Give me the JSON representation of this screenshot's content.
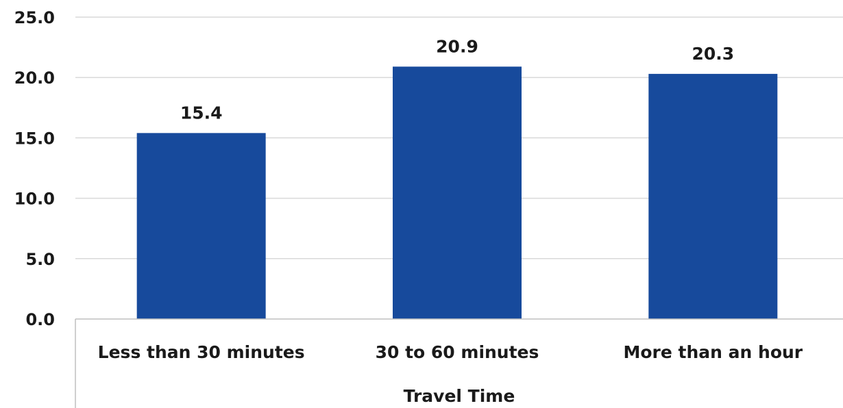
{
  "chart_data": {
    "type": "bar",
    "categories": [
      "Less than 30 minutes",
      "30 to 60 minutes",
      "More than an hour"
    ],
    "values": [
      15.4,
      20.9,
      20.3
    ],
    "value_labels": [
      "15.4",
      "20.9",
      "20.3"
    ],
    "title": "",
    "xlabel": "Travel Time",
    "ylabel": "",
    "ylim": [
      0,
      25
    ],
    "yticks": [
      "0.0",
      "5.0",
      "10.0",
      "15.0",
      "20.0",
      "25.0"
    ],
    "grid": true,
    "legend": "none",
    "colors": {
      "bar": "#174a9c",
      "grid": "#d9d9d9",
      "axis": "#bfbfbf"
    }
  }
}
